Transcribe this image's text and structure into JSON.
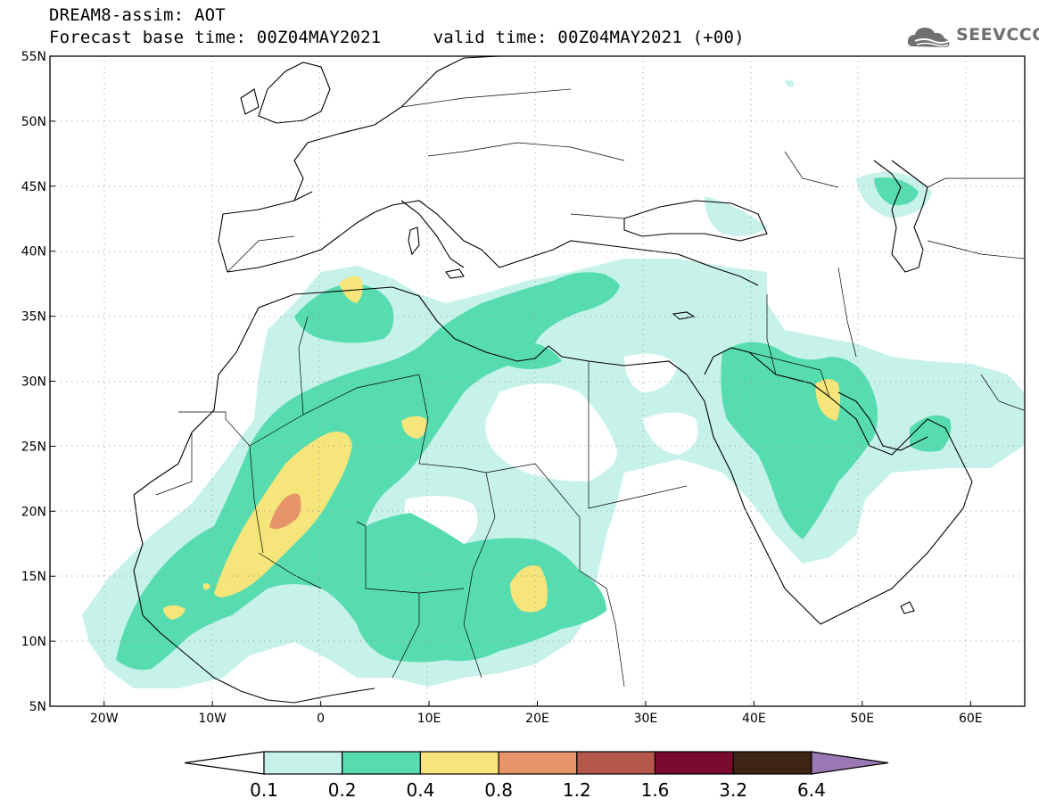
{
  "header": {
    "title_line1": "DREAM8-assim: AOT",
    "title_line2": "Forecast base time: 00Z04MAY2021     valid time: 00Z04MAY2021 (+00)"
  },
  "logo": {
    "text": "SEEVCCC",
    "icon": "cloud-icon"
  },
  "map": {
    "lon_range": [
      -25,
      65
    ],
    "lat_range": [
      5,
      55
    ],
    "lat_ticks": [
      {
        "value": 55,
        "label": "55N"
      },
      {
        "value": 50,
        "label": "50N"
      },
      {
        "value": 45,
        "label": "45N"
      },
      {
        "value": 40,
        "label": "40N"
      },
      {
        "value": 35,
        "label": "35N"
      },
      {
        "value": 30,
        "label": "30N"
      },
      {
        "value": 25,
        "label": "25N"
      },
      {
        "value": 20,
        "label": "20N"
      },
      {
        "value": 15,
        "label": "15N"
      },
      {
        "value": 10,
        "label": "10N"
      },
      {
        "value": 5,
        "label": "5N"
      }
    ],
    "lon_ticks": [
      {
        "value": -20,
        "label": "20W"
      },
      {
        "value": -10,
        "label": "10W"
      },
      {
        "value": 0,
        "label": "0"
      },
      {
        "value": 10,
        "label": "10E"
      },
      {
        "value": 20,
        "label": "20E"
      },
      {
        "value": 30,
        "label": "30E"
      },
      {
        "value": 40,
        "label": "40E"
      },
      {
        "value": 50,
        "label": "50E"
      },
      {
        "value": 60,
        "label": "60E"
      }
    ],
    "grid": "dotted",
    "colors": {
      "level_01": "#c6f2ea",
      "level_02": "#57dcb0",
      "level_04": "#f5e57a",
      "level_08": "#e8946b",
      "coast": "#000000"
    }
  },
  "colorbar": {
    "labels": [
      "0.1",
      "0.2",
      "0.4",
      "0.8",
      "1.2",
      "1.6",
      "3.2",
      "6.4"
    ],
    "colors": [
      "#ffffff",
      "#c6f2ea",
      "#57dcb0",
      "#f5e57a",
      "#e8946b",
      "#b5584b",
      "#7b0b2e",
      "#3d2415",
      "#9b77b5"
    ]
  }
}
